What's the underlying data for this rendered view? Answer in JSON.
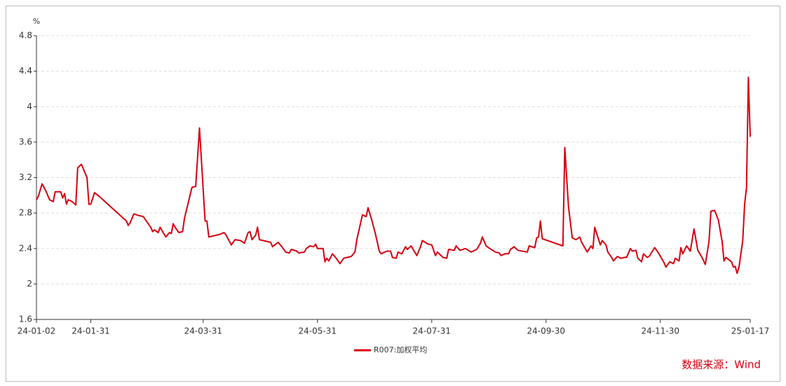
{
  "chart_data": {
    "type": "line",
    "y_label": "%",
    "source": "数据来源：Wind",
    "grid": true,
    "legend": "bottom",
    "xlim": [
      "24-01-02",
      "25-01-17"
    ],
    "xticks": [
      "24-01-02",
      "24-01-31",
      "24-03-31",
      "24-05-31",
      "24-07-31",
      "24-09-30",
      "24-11-30",
      "25-01-17"
    ],
    "ylim": [
      1.6,
      4.8
    ],
    "yticks": [
      1.6,
      2,
      2.4,
      2.8,
      3.2,
      3.6,
      4,
      4.4,
      4.8
    ],
    "x": [
      "24-01-02",
      "24-01-03",
      "24-01-05",
      "24-01-07",
      "24-01-09",
      "24-01-11",
      "24-01-12",
      "24-01-15",
      "24-01-16",
      "24-01-17",
      "24-01-18",
      "24-01-19",
      "24-01-21",
      "24-01-23",
      "24-01-24",
      "24-01-26",
      "24-01-29",
      "24-01-30",
      "24-01-31",
      "24-02-02",
      "24-02-05",
      "24-02-08",
      "24-02-19",
      "24-02-20",
      "24-02-21",
      "24-02-23",
      "24-02-26",
      "24-02-28",
      "24-03-03",
      "24-03-04",
      "24-03-05",
      "24-03-07",
      "24-03-08",
      "24-03-11",
      "24-03-13",
      "24-03-14",
      "24-03-15",
      "24-03-16",
      "24-03-18",
      "24-03-20",
      "24-03-21",
      "24-03-25",
      "24-03-27",
      "24-03-29",
      "24-04-01",
      "24-04-02",
      "24-04-03",
      "24-04-09",
      "24-04-11",
      "24-04-12",
      "24-04-15",
      "24-04-17",
      "24-04-20",
      "24-04-22",
      "24-04-24",
      "24-04-25",
      "24-04-26",
      "24-04-28",
      "24-04-29",
      "24-04-30",
      "24-05-06",
      "24-05-07",
      "24-05-10",
      "24-05-12",
      "24-05-14",
      "24-05-16",
      "24-05-17",
      "24-05-20",
      "24-05-21",
      "24-05-24",
      "24-05-25",
      "24-05-27",
      "24-05-29",
      "24-05-30",
      "24-05-31",
      "24-06-03",
      "24-06-04",
      "24-06-05",
      "24-06-06",
      "24-06-08",
      "24-06-10",
      "24-06-12",
      "24-06-14",
      "24-06-16",
      "24-06-18",
      "24-06-20",
      "24-06-21",
      "24-06-24",
      "24-06-26",
      "24-06-27",
      "24-06-29",
      "24-07-01",
      "24-07-03",
      "24-07-04",
      "24-07-07",
      "24-07-09",
      "24-07-10",
      "24-07-12",
      "24-07-13",
      "24-07-15",
      "24-07-17",
      "24-07-18",
      "24-07-20",
      "24-07-23",
      "24-07-25",
      "24-07-26",
      "24-07-29",
      "24-07-31",
      "24-08-02",
      "24-08-03",
      "24-08-06",
      "24-08-08",
      "24-08-09",
      "24-08-12",
      "24-08-13",
      "24-08-15",
      "24-08-18",
      "24-08-21",
      "24-08-24",
      "24-08-26",
      "24-08-27",
      "24-08-29",
      "24-08-31",
      "24-09-03",
      "24-09-05",
      "24-09-06",
      "24-09-08",
      "24-09-10",
      "24-09-11",
      "24-09-13",
      "24-09-15",
      "24-09-20",
      "24-09-21",
      "24-09-24",
      "24-09-25",
      "24-09-26",
      "24-09-27",
      "24-09-28",
      "24-10-09",
      "24-10-10",
      "24-10-12",
      "24-10-14",
      "24-10-16",
      "24-10-18",
      "24-10-19",
      "24-10-22",
      "24-10-24",
      "24-10-25",
      "24-10-26",
      "24-10-29",
      "24-10-30",
      "24-11-01",
      "24-11-02",
      "24-11-04",
      "24-11-05",
      "24-11-07",
      "24-11-09",
      "24-11-11",
      "24-11-12",
      "24-11-14",
      "24-11-15",
      "24-11-17",
      "24-11-18",
      "24-11-20",
      "24-11-21",
      "24-11-23",
      "24-11-24",
      "24-11-27",
      "24-11-29",
      "24-12-02",
      "24-12-03",
      "24-12-05",
      "24-12-07",
      "24-12-08",
      "24-12-10",
      "24-12-11",
      "24-12-12",
      "24-12-14",
      "24-12-16",
      "24-12-18",
      "24-12-20",
      "24-12-22",
      "24-12-24",
      "24-12-26",
      "24-12-27",
      "24-12-29",
      "24-12-31",
      "25-01-02",
      "25-01-03",
      "25-01-04",
      "25-01-07",
      "25-01-08",
      "25-01-09",
      "25-01-10",
      "25-01-11",
      "25-01-13",
      "25-01-14",
      "25-01-15",
      "25-01-16",
      "25-01-17"
    ],
    "series": [
      {
        "name": "R007:加权平均",
        "color": "#d7000f",
        "values": [
          2.95,
          2.99,
          3.13,
          3.05,
          2.95,
          2.93,
          3.04,
          3.04,
          2.97,
          3.02,
          2.9,
          2.95,
          2.93,
          2.89,
          3.31,
          3.35,
          3.2,
          2.9,
          2.9,
          3.03,
          2.98,
          2.92,
          2.71,
          2.66,
          2.69,
          2.79,
          2.77,
          2.76,
          2.64,
          2.59,
          2.61,
          2.58,
          2.64,
          2.53,
          2.58,
          2.57,
          2.68,
          2.64,
          2.58,
          2.59,
          2.74,
          3.09,
          3.1,
          3.76,
          2.71,
          2.71,
          2.53,
          2.56,
          2.58,
          2.56,
          2.44,
          2.5,
          2.49,
          2.46,
          2.58,
          2.59,
          2.5,
          2.55,
          2.64,
          2.5,
          2.47,
          2.42,
          2.47,
          2.42,
          2.36,
          2.35,
          2.39,
          2.37,
          2.35,
          2.36,
          2.4,
          2.43,
          2.42,
          2.45,
          2.4,
          2.4,
          2.25,
          2.29,
          2.26,
          2.34,
          2.29,
          2.23,
          2.29,
          2.3,
          2.31,
          2.36,
          2.5,
          2.78,
          2.76,
          2.86,
          2.72,
          2.56,
          2.37,
          2.34,
          2.37,
          2.37,
          2.3,
          2.29,
          2.36,
          2.34,
          2.42,
          2.39,
          2.43,
          2.32,
          2.42,
          2.49,
          2.45,
          2.44,
          2.32,
          2.36,
          2.3,
          2.29,
          2.39,
          2.38,
          2.43,
          2.38,
          2.4,
          2.36,
          2.39,
          2.46,
          2.53,
          2.43,
          2.4,
          2.36,
          2.35,
          2.32,
          2.34,
          2.34,
          2.39,
          2.42,
          2.38,
          2.36,
          2.43,
          2.41,
          2.52,
          2.53,
          2.71,
          2.51,
          2.43,
          3.54,
          2.87,
          2.52,
          2.5,
          2.53,
          2.47,
          2.36,
          2.43,
          2.4,
          2.64,
          2.44,
          2.49,
          2.44,
          2.36,
          2.3,
          2.26,
          2.31,
          2.29,
          2.3,
          2.3,
          2.4,
          2.37,
          2.38,
          2.29,
          2.25,
          2.34,
          2.3,
          2.31,
          2.41,
          2.35,
          2.24,
          2.19,
          2.25,
          2.23,
          2.29,
          2.26,
          2.41,
          2.34,
          2.43,
          2.37,
          2.62,
          2.38,
          2.31,
          2.22,
          2.48,
          2.82,
          2.83,
          2.72,
          2.48,
          2.26,
          2.3,
          2.25,
          2.19,
          2.2,
          2.12,
          2.19,
          2.49,
          2.9,
          3.09,
          4.33,
          3.66
        ]
      }
    ]
  }
}
